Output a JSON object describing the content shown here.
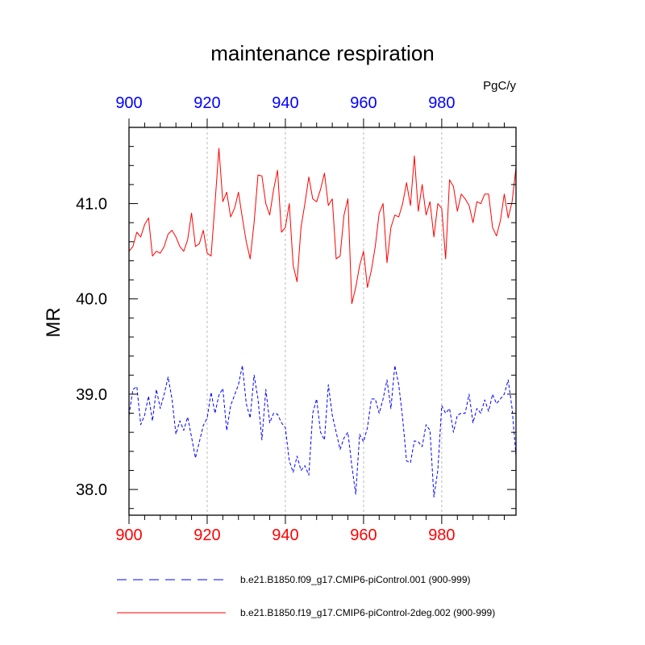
{
  "chart_data": {
    "type": "line",
    "title": "maintenance respiration",
    "units": "PgC/y",
    "ylabel": "MR",
    "xlabel": "",
    "xlim": [
      900,
      999
    ],
    "ylim": [
      37.73,
      41.8
    ],
    "x_ticks": [
      900,
      920,
      940,
      960,
      980
    ],
    "x_tick_labels": [
      "900",
      "920",
      "940",
      "960",
      "980"
    ],
    "y_ticks": [
      38.0,
      39.0,
      40.0,
      41.0
    ],
    "y_tick_labels": [
      "38.0",
      "39.0",
      "40.0",
      "41.0"
    ],
    "top_axis_color": "#0000ff",
    "bottom_axis_color": "#ff0000",
    "grid": "vertical dashed at major x ticks",
    "x": [
      900,
      901,
      902,
      903,
      904,
      905,
      906,
      907,
      908,
      909,
      910,
      911,
      912,
      913,
      914,
      915,
      916,
      917,
      918,
      919,
      920,
      921,
      922,
      923,
      924,
      925,
      926,
      927,
      928,
      929,
      930,
      931,
      932,
      933,
      934,
      935,
      936,
      937,
      938,
      939,
      940,
      941,
      942,
      943,
      944,
      945,
      946,
      947,
      948,
      949,
      950,
      951,
      952,
      953,
      954,
      955,
      956,
      957,
      958,
      959,
      960,
      961,
      962,
      963,
      964,
      965,
      966,
      967,
      968,
      969,
      970,
      971,
      972,
      973,
      974,
      975,
      976,
      977,
      978,
      979,
      980,
      981,
      982,
      983,
      984,
      985,
      986,
      987,
      988,
      989,
      990,
      991,
      992,
      993,
      994,
      995,
      996,
      997,
      998,
      999
    ],
    "series": [
      {
        "name": "b.e21.B1850.f09_g17.CMIP6-piControl.001 (900-999)",
        "color": "#0000ff",
        "style": "dashed",
        "values": [
          38.78,
          39.05,
          39.08,
          38.68,
          38.78,
          38.98,
          38.72,
          39.05,
          38.85,
          39.0,
          39.18,
          38.95,
          38.58,
          38.72,
          38.62,
          38.76,
          38.55,
          38.33,
          38.5,
          38.67,
          38.75,
          39.02,
          38.8,
          38.99,
          39.06,
          38.62,
          38.88,
          38.99,
          39.1,
          39.3,
          38.9,
          38.75,
          39.2,
          38.95,
          38.52,
          39.05,
          38.7,
          38.8,
          38.79,
          38.7,
          38.65,
          38.3,
          38.18,
          38.35,
          38.2,
          38.25,
          38.15,
          38.8,
          38.95,
          38.6,
          38.52,
          39.1,
          38.78,
          38.6,
          38.42,
          38.54,
          38.6,
          38.25,
          37.95,
          38.58,
          38.5,
          38.65,
          38.95,
          38.95,
          38.8,
          38.95,
          39.15,
          38.85,
          39.3,
          39.1,
          38.75,
          38.3,
          38.28,
          38.51,
          38.5,
          38.45,
          38.68,
          38.62,
          37.92,
          38.2,
          38.88,
          38.8,
          38.85,
          38.6,
          38.78,
          38.8,
          38.8,
          39.0,
          38.7,
          38.85,
          38.8,
          38.94,
          38.82,
          39.0,
          38.9,
          38.95,
          39.0,
          39.15,
          38.85,
          38.35
        ]
      },
      {
        "name": "b.e21.B1850.f19_g17.CMIP6-piControl-2deg.002 (900-999)",
        "color": "#ff0000",
        "style": "solid",
        "values": [
          40.5,
          40.55,
          40.7,
          40.65,
          40.78,
          40.85,
          40.45,
          40.5,
          40.48,
          40.55,
          40.68,
          40.72,
          40.65,
          40.55,
          40.5,
          40.62,
          40.9,
          40.55,
          40.58,
          40.72,
          40.48,
          40.45,
          41.0,
          41.58,
          41.02,
          41.12,
          40.86,
          40.95,
          41.12,
          40.85,
          40.6,
          40.42,
          40.8,
          41.3,
          41.29,
          41.0,
          40.88,
          41.15,
          41.35,
          40.7,
          40.75,
          41.0,
          40.35,
          40.18,
          40.75,
          41.0,
          41.28,
          41.05,
          41.02,
          41.15,
          41.32,
          40.98,
          41.05,
          40.42,
          40.45,
          40.88,
          41.05,
          39.95,
          40.12,
          40.35,
          40.5,
          40.12,
          40.3,
          40.55,
          40.9,
          41.0,
          40.38,
          40.75,
          40.88,
          40.86,
          41.0,
          41.22,
          40.98,
          41.5,
          40.92,
          41.2,
          40.88,
          41.02,
          40.65,
          41.0,
          40.95,
          40.42,
          41.25,
          41.18,
          40.92,
          41.1,
          41.05,
          40.98,
          40.8,
          41.02,
          41.0,
          41.1,
          41.1,
          40.75,
          40.66,
          40.82,
          41.1,
          40.85,
          41.02,
          41.38
        ]
      }
    ]
  }
}
